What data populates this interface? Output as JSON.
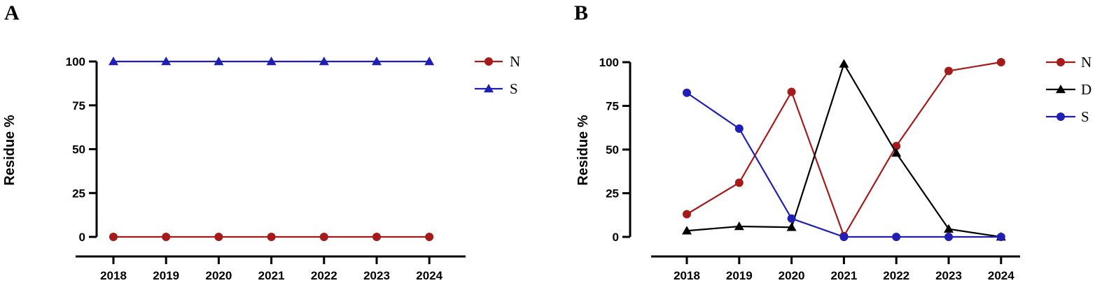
{
  "chart_data": [
    {
      "type": "line",
      "panel": "A",
      "categories": [
        "2018",
        "2019",
        "2020",
        "2021",
        "2022",
        "2023",
        "2024"
      ],
      "ylabel": "Residue %",
      "xlabel": "",
      "ylim": [
        0,
        100
      ],
      "yticks": [
        "0",
        "25",
        "50",
        "75",
        "100"
      ],
      "legend_position": "right",
      "grid": false,
      "series": [
        {
          "name": "N",
          "marker": "circle",
          "color": "#a51b1b",
          "values": [
            0,
            0,
            0,
            0,
            0,
            0,
            0
          ]
        },
        {
          "name": "S",
          "marker": "triangle",
          "color": "#1f1fb4",
          "values": [
            100,
            100,
            100,
            100,
            100,
            100,
            100
          ]
        }
      ]
    },
    {
      "type": "line",
      "panel": "B",
      "categories": [
        "2018",
        "2019",
        "2020",
        "2021",
        "2022",
        "2023",
        "2024"
      ],
      "ylabel": "Residue %",
      "xlabel": "",
      "ylim": [
        0,
        100
      ],
      "yticks": [
        "0",
        "25",
        "50",
        "75",
        "100"
      ],
      "legend_position": "right",
      "grid": false,
      "series": [
        {
          "name": "N",
          "marker": "circle",
          "color": "#a51b1b",
          "values": [
            13,
            31,
            83,
            0.5,
            52,
            95,
            100
          ]
        },
        {
          "name": "D",
          "marker": "triangle",
          "color": "#000000",
          "values": [
            3.5,
            6,
            5.5,
            99,
            48,
            4.5,
            0
          ]
        },
        {
          "name": "S",
          "marker": "circle",
          "color": "#1f1fb4",
          "values": [
            82.5,
            62,
            10.5,
            0,
            0,
            0,
            0
          ]
        }
      ]
    }
  ]
}
